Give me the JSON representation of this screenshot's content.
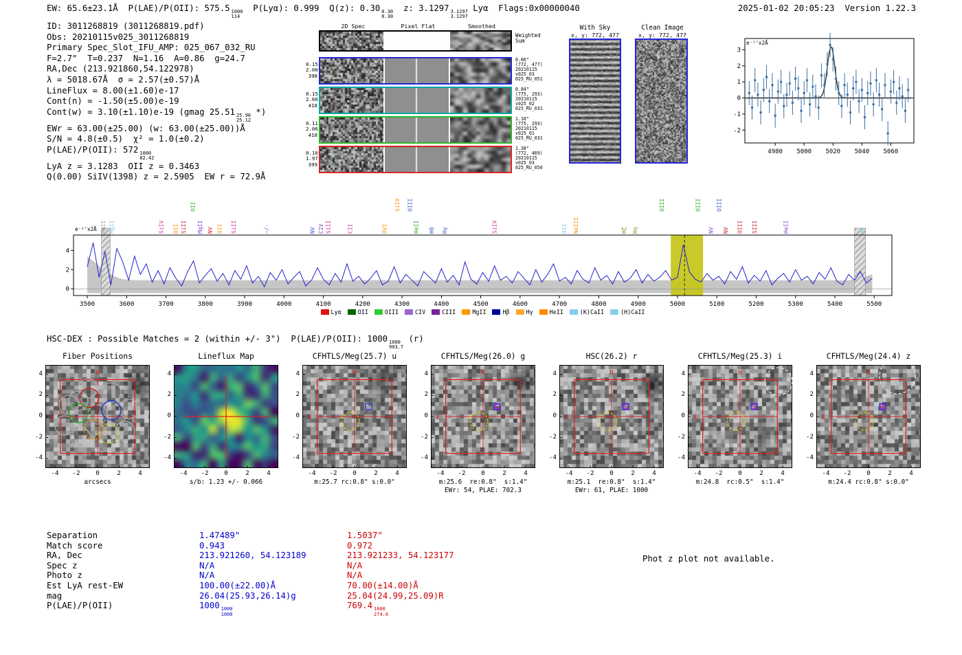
{
  "header": {
    "left_segments": [
      {
        "t": "EW: 65.6±23.1Å  P(LAE)/P(OII): 575.5"
      },
      {
        "f": [
          "1000",
          "114"
        ]
      },
      {
        "t": "  P(Lyα): 0.999  Q(z): 0.30"
      },
      {
        "f": [
          "0.30",
          "0.30"
        ]
      },
      {
        "t": "  z: 3.1297"
      },
      {
        "f": [
          "3.1297",
          "3.1297"
        ]
      },
      {
        "t": " Lyα  Flags:0x00000040"
      }
    ],
    "date": "2025-01-02 20:05:23  Version 1.22.3"
  },
  "info_lines": [
    [
      {
        "t": "ID: 3011268819 (3011268819.pdf)"
      }
    ],
    [
      {
        "t": "Obs: 20210115v025_3011268819"
      }
    ],
    [
      {
        "t": "Primary Spec_Slot_IFU_AMP: 025_067_032_RU"
      }
    ],
    [
      {
        "t": "F=2.7\"  T=0.237  N=1.16  A=0.86  g=24.7"
      }
    ],
    [
      {
        "t": "RA,Dec (213.921860,54.122978)"
      }
    ],
    [
      {
        "t": "λ = 5018.67Å  σ = 2.57(±0.57)Å"
      }
    ],
    [
      {
        "t": "LineFlux = 8.00(±1.60)e-17"
      }
    ],
    [
      {
        "t": "Cont(n) = -1.50(±5.00)e-19"
      }
    ],
    [
      {
        "t": "Cont(w) = 3.10(±1.10)e-19 (gmag 25.51"
      },
      {
        "f": [
          "25.90",
          "25.12"
        ]
      },
      {
        "t": " *)"
      }
    ],
    [
      {
        "t": "EWr = 63.00(±25.00) (w: 63.00(±25.00))Å"
      }
    ],
    [
      {
        "t": "S/N = 4.8(±0.5)  χ² = 1.0(±0.2)"
      }
    ],
    [
      {
        "t": "P(LAE)/P(OII): 572"
      },
      {
        "f": [
          "1000",
          "82.42"
        ]
      }
    ],
    [
      {
        "t": "LyA z = 3.1283  OII z = 0.3463"
      }
    ],
    [
      {
        "t": "Q(0.00) SiIV(1398) z = 2.5905  EW r = 72.9Å"
      }
    ]
  ],
  "spec2d": {
    "col_headers": [
      "2D Spec",
      "Pixel Flat",
      "Smoothed"
    ],
    "weighted_label": [
      "Weighted",
      "Sum"
    ],
    "rows": [
      {
        "border": "#000000",
        "left": [],
        "right": []
      },
      {
        "border": "#2424d8",
        "left": [
          "0.15",
          "2.00",
          "398"
        ],
        "right": [
          "0.66\"",
          "(772, 477)",
          "20210115",
          "v025_03",
          "025_RU_051"
        ]
      },
      {
        "border": "#00a8a8",
        "left": [
          "0.15",
          "2.66",
          "418"
        ],
        "right": [
          "0.84\"",
          "(775, 293)",
          "20210115",
          "v025_02",
          "025_RU_031"
        ]
      },
      {
        "border": "#28b828",
        "left": [
          "0.11",
          "2.06",
          "418"
        ],
        "right": [
          "1.18\"",
          "(775, 293)",
          "20210115",
          "v025_01",
          "025_RU_031"
        ]
      },
      {
        "border": "#d82424",
        "left": [
          "0.10",
          "1.97",
          "399"
        ],
        "right": [
          "1.38\"",
          "(772, 469)",
          "20210115",
          "v025_03",
          "025_RU_050"
        ]
      }
    ]
  },
  "sky_panels": {
    "with_sky": {
      "title": "With Sky",
      "coords": "x, y: 772, 477"
    },
    "clean": {
      "title": "Clean Image",
      "coords": "x, y: 772, 477"
    }
  },
  "chart_data": [
    {
      "id": "line_fit_plot",
      "type": "scatter",
      "units_label": "e⁻¹⁷x2Å",
      "x_start": 4962,
      "x_step": 2,
      "values": [
        0.3,
        -0.6,
        1.1,
        0.2,
        -0.9,
        0.5,
        1.3,
        -0.2,
        0.8,
        -1.1,
        0.4,
        1.0,
        -0.5,
        0.2,
        0.9,
        -0.3,
        1.2,
        0.6,
        -0.8,
        0.3,
        1.1,
        -0.4,
        0.7,
        0.1,
        -0.6,
        1.4,
        0.8,
        2.1,
        3.3,
        2.4,
        1.2,
        0.3,
        -0.5,
        0.8,
        0.2,
        -0.9,
        0.6,
        1.0,
        -0.2,
        0.5,
        -1.2,
        0.3,
        0.9,
        -0.4,
        1.1,
        0.2,
        -0.7,
        0.8,
        -2.2,
        0.4,
        1.0,
        -0.3,
        0.6,
        0.1,
        -0.8,
        0.5
      ],
      "yerr": 0.75,
      "fit": {
        "center": 5018.67,
        "sigma": 2.57,
        "amplitude": 3.2
      },
      "xticks": [
        4980,
        5000,
        5020,
        5040,
        5060
      ],
      "yticks": [
        3,
        2,
        1,
        0,
        -1,
        -2
      ],
      "xlim": [
        4959,
        5076
      ],
      "ylim": [
        -2.8,
        3.7
      ],
      "point_color": "#3a6ea5",
      "fit_color": "#2f2f2f"
    },
    {
      "id": "full_spectrum",
      "type": "line",
      "units_label": "e⁻¹⁷x2Å",
      "x_start": 3500,
      "x_step": 15,
      "values": [
        2.3,
        4.8,
        1.2,
        3.9,
        0.4,
        4.2,
        2.8,
        0.9,
        3.4,
        1.5,
        2.6,
        0.7,
        1.9,
        0.5,
        2.2,
        1.1,
        0.3,
        1.8,
        2.9,
        0.6,
        1.4,
        2.1,
        0.8,
        1.6,
        0.4,
        1.9,
        1.0,
        2.4,
        0.6,
        1.3,
        0.2,
        1.7,
        0.9,
        2.0,
        0.5,
        1.2,
        1.8,
        0.3,
        0.9,
        2.2,
        1.0,
        0.4,
        1.6,
        0.7,
        2.6,
        0.8,
        1.3,
        0.5,
        1.1,
        1.9,
        0.4,
        0.8,
        2.3,
        0.6,
        1.5,
        0.9,
        0.3,
        1.8,
        1.2,
        0.6,
        2.1,
        0.7,
        1.4,
        0.4,
        2.8,
        1.0,
        0.5,
        1.7,
        0.8,
        2.4,
        0.9,
        1.3,
        0.6,
        1.8,
        1.1,
        0.4,
        2.0,
        0.7,
        1.5,
        2.6,
        0.8,
        1.2,
        0.5,
        1.9,
        1.0,
        0.6,
        2.2,
        0.9,
        1.4,
        0.5,
        1.8,
        0.7,
        1.1,
        2.0,
        0.6,
        1.5,
        0.8,
        1.2,
        1.9,
        0.9,
        1.2,
        4.6,
        1.8,
        1.0,
        0.7,
        1.6,
        0.9,
        1.3,
        0.5,
        1.8,
        1.0,
        2.3,
        0.6,
        1.4,
        0.8,
        1.9,
        0.4,
        1.1,
        1.6,
        0.7,
        2.0,
        0.9,
        1.3,
        0.5,
        1.7,
        1.0,
        2.2,
        0.8,
        0.4,
        1.5,
        0.9,
        1.8,
        0.6,
        1.1
      ],
      "envelope_upper_start": [
        3.4,
        2.9,
        2.4,
        1.9,
        1.5,
        1.2,
        1.0,
        0.95
      ],
      "envelope_mid": 0.9,
      "envelope_upper_end": [
        1.0,
        1.1,
        1.3,
        1.5
      ],
      "envelope_lower": -0.45,
      "xticks": [
        3500,
        3600,
        3700,
        3800,
        3900,
        4000,
        4100,
        4200,
        4300,
        4400,
        4500,
        4600,
        4700,
        4800,
        4900,
        5000,
        5100,
        5200,
        5300,
        5400,
        5500
      ],
      "yticks": [
        0,
        2,
        4
      ],
      "xlim": [
        3465,
        5545
      ],
      "ylim": [
        -0.7,
        5.6
      ],
      "line_color": "#2222cc",
      "envelope_color": "#c0c0c0",
      "highlight_band": {
        "x0": 4983,
        "x1": 5065,
        "color": "#c6c61e",
        "dashed_line_x": 5018
      },
      "hatch_bands": [
        [
          3536,
          3558
        ],
        [
          5450,
          5478
        ]
      ],
      "line_labels": [
        {
          "wl": 3540,
          "label": "MgII",
          "color": "#999999"
        },
        {
          "wl": 3562,
          "label": "MgII",
          "color": "#7ec8e3"
        },
        {
          "wl": 3688,
          "label": "SiIV",
          "color": "#cc3399"
        },
        {
          "wl": 3724,
          "label": "OII",
          "color": "#ff8c00"
        },
        {
          "wl": 3744,
          "label": "SiII",
          "color": "#cc2222"
        },
        {
          "wl": 3768,
          "label": "OII",
          "color": "#22aa22",
          "tall": true
        },
        {
          "wl": 3786,
          "label": "MgII",
          "color": "#8844cc"
        },
        {
          "wl": 3812,
          "label": "NV",
          "color": "#cc2222"
        },
        {
          "wl": 3836,
          "label": "OII",
          "color": "#ff8c00"
        },
        {
          "wl": 3872,
          "label": "SiII",
          "color": "#cc3399"
        },
        {
          "wl": 3955,
          "label": "~/-",
          "color": "#8844cc"
        },
        {
          "wl": 4072,
          "label": "NV",
          "color": "#3355cc"
        },
        {
          "wl": 4094,
          "label": "CIV",
          "color": "#8844cc"
        },
        {
          "wl": 4112,
          "label": "SiII",
          "color": "#cc3399"
        },
        {
          "wl": 4168,
          "label": "CII",
          "color": "#cc3399"
        },
        {
          "wl": 4255,
          "label": "OVI",
          "color": "#ff8c00"
        },
        {
          "wl": 4288,
          "label": "SiIV",
          "color": "#ff8c00",
          "tall": true
        },
        {
          "wl": 4320,
          "label": "OIII",
          "color": "#3355cc",
          "tall": true
        },
        {
          "wl": 4336,
          "label": "HeII",
          "color": "#22aa22"
        },
        {
          "wl": 4375,
          "label": "Hδ",
          "color": "#3355cc"
        },
        {
          "wl": 4408,
          "label": "Hγ",
          "color": "#3355cc"
        },
        {
          "wl": 4535,
          "label": "SiIV",
          "color": "#cc3399"
        },
        {
          "wl": 4712,
          "label": "OII",
          "color": "#7ec8e3"
        },
        {
          "wl": 4742,
          "label": "NeIII",
          "color": "#ff8c00"
        },
        {
          "wl": 4864,
          "label": "Hζ",
          "color": "#888822"
        },
        {
          "wl": 4892,
          "label": "Hη",
          "color": "#888822"
        },
        {
          "wl": 4960,
          "label": "OIII",
          "color": "#22aa22",
          "tall": true
        },
        {
          "wl": 5052,
          "label": "OIII",
          "color": "#22aa22",
          "tall": true
        },
        {
          "wl": 5085,
          "label": "NV",
          "color": "#8844cc"
        },
        {
          "wl": 5106,
          "label": "OIII",
          "color": "#3355cc",
          "tall": true
        },
        {
          "wl": 5122,
          "label": "NV",
          "color": "#cc2222"
        },
        {
          "wl": 5158,
          "label": "OIII",
          "color": "#cc2222"
        },
        {
          "wl": 5196,
          "label": "SIII",
          "color": "#cc2222"
        },
        {
          "wl": 5275,
          "label": "HeII",
          "color": "#8844cc"
        },
        {
          "wl": 5470,
          "label": "Hγ",
          "color": "#7ec8e3"
        }
      ],
      "legend": [
        {
          "label": "Lyα",
          "color": "#dd1111"
        },
        {
          "label": "OII",
          "color": "#006400"
        },
        {
          "label": "OIII",
          "color": "#33cc33"
        },
        {
          "label": "CIV",
          "color": "#9966cc"
        },
        {
          "label": "CIII",
          "color": "#7a1fa2"
        },
        {
          "label": "MgII",
          "color": "#ff9900"
        },
        {
          "label": "Hβ",
          "color": "#000099"
        },
        {
          "label": "Hγ",
          "color": "#ffaa33"
        },
        {
          "label": "HeII",
          "color": "#ff8c00"
        },
        {
          "label": "(K)CaII",
          "color": "#87ceeb"
        },
        {
          "label": "(H)CaII",
          "color": "#87ceeb"
        }
      ]
    }
  ],
  "hsc_dex_segments": [
    {
      "t": "HSC-DEX : Possible Matches = 2 (within +/- 3\")  P(LAE)/P(OII): 1000"
    },
    {
      "f": [
        "1000",
        "903.7"
      ]
    },
    {
      "t": " (r)"
    }
  ],
  "cutout_panels": {
    "axis_ticks": [
      -4,
      -2,
      0,
      2,
      4
    ],
    "panels": [
      {
        "title": "Fiber Positions",
        "xlabel": "arcsecs",
        "sub": "",
        "kind": "fibers"
      },
      {
        "title": "Lineflux Map",
        "xlabel": "s/b: 1.23 +/- 0.066",
        "sub": "",
        "kind": "heatmap"
      },
      {
        "title": "CFHTLS/Meg(25.7) u",
        "xlabel": "m:25.7 rc:0.8\" s:0.0\"",
        "sub": "",
        "kind": "image"
      },
      {
        "title": "CFHTLS/Meg(26.0) g",
        "xlabel": "m:25.6  re:0.8\"  s:1.4\"",
        "sub": "EWr: 54, PLAE: 702.3",
        "kind": "image"
      },
      {
        "title": "HSC(26.2) r",
        "xlabel": "m:25.1  re:0.8\"  s:1.4\"",
        "sub": "EWr: 61, PLAE: 1000",
        "kind": "image"
      },
      {
        "title": "CFHTLS/Meg(25.3) i",
        "xlabel": "m:24.8  rc:0.5\"  s:1.4\"",
        "sub": "",
        "kind": "image"
      },
      {
        "title": "CFHTLS/Meg(24.4) z",
        "xlabel": "m:24.4 rc:0.8\" s:0.0\"",
        "sub": "",
        "kind": "image"
      }
    ]
  },
  "matches": {
    "row_labels": [
      "Separation",
      "Match score",
      "RA, Dec",
      "Spec z",
      "Photo z",
      "Est LyA rest-EW",
      "mag",
      "P(LAE)/P(OII)"
    ],
    "columns": [
      {
        "color": "#0000cc",
        "values": [
          [
            {
              "t": "1.47489\""
            }
          ],
          [
            {
              "t": "0.943"
            }
          ],
          [
            {
              "t": "213.921260, 54.123189"
            }
          ],
          [
            {
              "t": "N/A"
            }
          ],
          [
            {
              "t": "N/A"
            }
          ],
          [
            {
              "t": "100.00(±22.00)Å"
            }
          ],
          [
            {
              "t": "26.04(25.93,26.14)g"
            }
          ],
          [
            {
              "t": "1000"
            },
            {
              "f": [
                "1000",
                "1000"
              ]
            }
          ]
        ]
      },
      {
        "color": "#cc0000",
        "values": [
          [
            {
              "t": "1.5037\""
            }
          ],
          [
            {
              "t": "0.972"
            }
          ],
          [
            {
              "t": "213.921233, 54.123177"
            }
          ],
          [
            {
              "t": "N/A"
            }
          ],
          [
            {
              "t": "N/A"
            }
          ],
          [
            {
              "t": "70.00(±14.00)Å"
            }
          ],
          [
            {
              "t": "25.04(24.99,25.09)R"
            }
          ],
          [
            {
              "t": "769.4"
            },
            {
              "f": [
                "1000",
                "274.6"
              ]
            }
          ]
        ]
      }
    ]
  },
  "phot_z_note": "Phot z plot not available."
}
